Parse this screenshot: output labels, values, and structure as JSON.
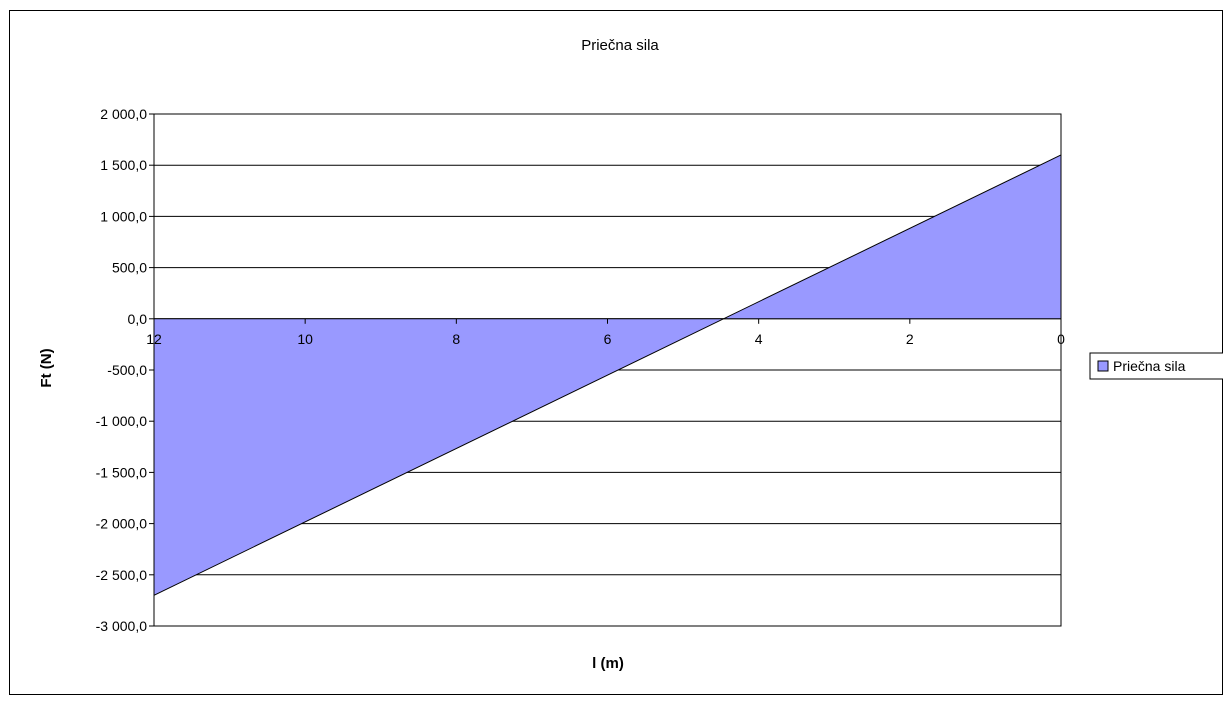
{
  "chart_data": {
    "type": "area",
    "title": "Priečna sila",
    "xlabel": "l (m)",
    "ylabel": "Ft (N)",
    "x_reversed": true,
    "xlim": [
      0,
      12
    ],
    "ylim": [
      -3000,
      2000
    ],
    "y_ticks": [
      2000,
      1500,
      1000,
      500,
      0,
      -500,
      -1000,
      -1500,
      -2000,
      -2500,
      -3000
    ],
    "y_tick_labels": [
      "2 000,0",
      "1 500,0",
      "1 000,0",
      "500,0",
      "0,0",
      "-500,0",
      "-1 000,0",
      "-1 500,0",
      "-2 000,0",
      "-2 500,0",
      "-3 000,0"
    ],
    "x_ticks": [
      12,
      10,
      8,
      6,
      4,
      2,
      0
    ],
    "x_tick_labels": [
      "12",
      "10",
      "8",
      "6",
      "4",
      "2",
      "0"
    ],
    "grid": "horizontal",
    "legend_position": "right",
    "series": [
      {
        "name": "Priečna sila",
        "color": "#9999ff",
        "x": [
          12,
          0
        ],
        "values": [
          -2700,
          1600
        ]
      }
    ]
  }
}
